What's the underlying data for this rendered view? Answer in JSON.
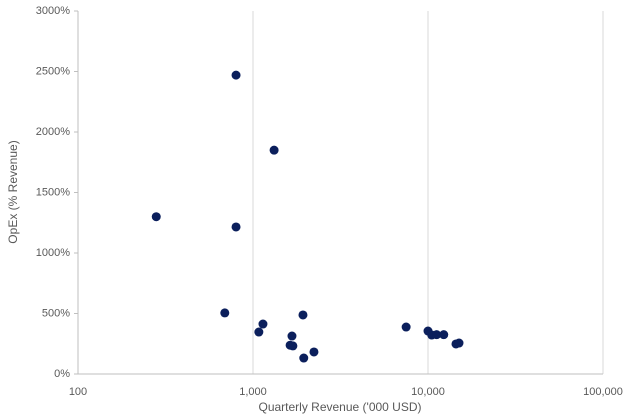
{
  "chart_data": {
    "type": "scatter",
    "x_label": "Quarterly Revenue ('000 USD)",
    "y_label": "OpEx (% Revenue)",
    "x": [
      800,
      1320,
      280,
      800,
      690,
      1140,
      1080,
      1930,
      1670,
      1630,
      1690,
      2230,
      1950,
      7500,
      10000,
      10500,
      11200,
      12300,
      14450,
      15040
    ],
    "values": [
      2470,
      1850,
      1300,
      1215,
      505,
      413,
      347,
      488,
      314,
      238,
      232,
      182,
      132,
      388,
      355,
      322,
      325,
      325,
      248,
      256
    ],
    "color": "#0b1f5c",
    "xlog": true,
    "xlim": [
      100,
      100000
    ],
    "xticks": [
      100,
      {
        "value": 1000,
        "label": "1,000"
      },
      {
        "value": 10000,
        "label": "10,000"
      },
      {
        "value": 100000,
        "label": "100,000"
      }
    ],
    "ylim": [
      0,
      3000
    ],
    "yticks": [
      {
        "value": 0,
        "label": "0%"
      },
      {
        "value": 500,
        "label": "500%"
      },
      {
        "value": 1000,
        "label": "1000%"
      },
      {
        "value": 1500,
        "label": "1500%"
      },
      {
        "value": 2000,
        "label": "2000%"
      },
      {
        "value": 2500,
        "label": "2500%"
      },
      {
        "value": 3000,
        "label": "3000%"
      }
    ],
    "grid": true
  }
}
